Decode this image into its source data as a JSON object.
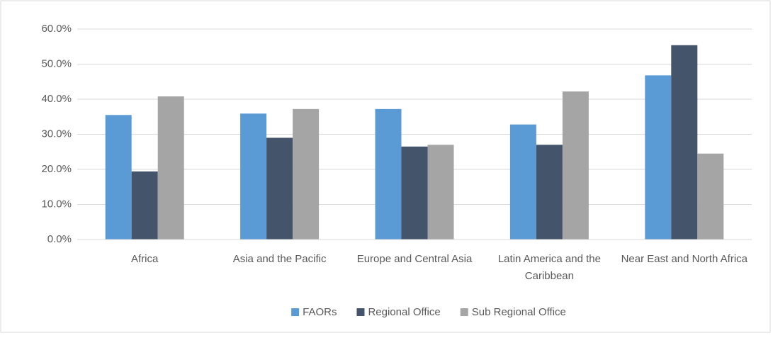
{
  "chart_data": {
    "type": "bar",
    "categories": [
      "Africa",
      "Asia and the Pacific",
      "Europe and Central Asia",
      "Latin America and the Caribbean",
      "Near East and North Africa"
    ],
    "series": [
      {
        "name": "FAORs",
        "color": "#5b9bd5",
        "values": [
          35.5,
          35.9,
          37.2,
          32.8,
          46.8
        ]
      },
      {
        "name": "Regional Office",
        "color": "#44546a",
        "values": [
          19.4,
          29.0,
          26.5,
          27.0,
          55.4
        ]
      },
      {
        "name": "Sub Regional Office",
        "color": "#a5a5a5",
        "values": [
          40.8,
          37.2,
          27.0,
          42.2,
          24.5
        ]
      }
    ],
    "ylim": [
      0,
      60
    ],
    "yticks": [
      {
        "value": 0,
        "label": "0.0%"
      },
      {
        "value": 10,
        "label": "10.0%"
      },
      {
        "value": 20,
        "label": "20.0%"
      },
      {
        "value": 30,
        "label": "30.0%"
      },
      {
        "value": 40,
        "label": "40.0%"
      },
      {
        "value": 50,
        "label": "50.0%"
      },
      {
        "value": 60,
        "label": "60.0%"
      }
    ],
    "grid": true,
    "legend": "bottom"
  }
}
